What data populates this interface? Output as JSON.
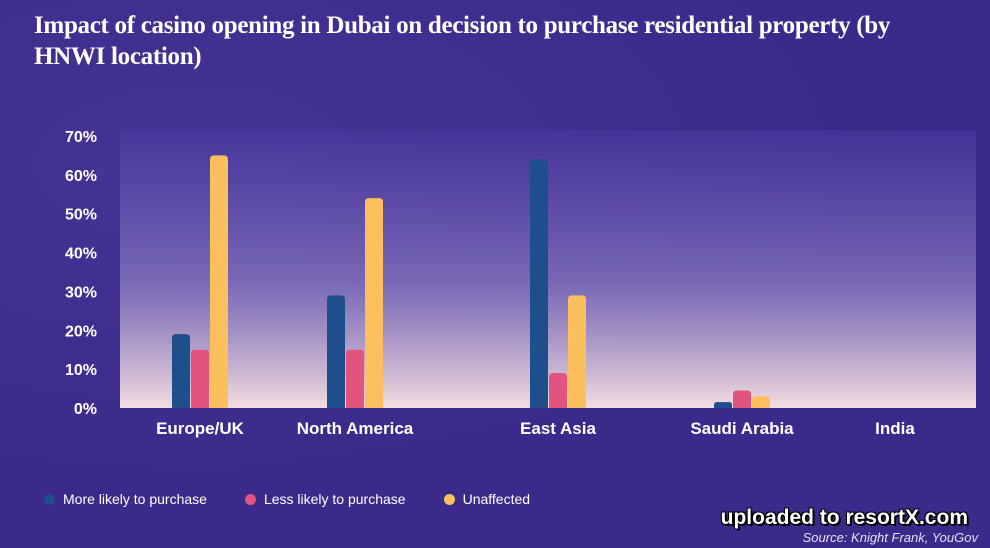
{
  "title": "Impact of casino opening in Dubai on decision to purchase residential property (by HNWI location)",
  "watermark": "uploaded to resortX.com",
  "source": "Source: Knight Frank, YouGov",
  "colors": {
    "more_likely": "#1f4e8c",
    "less_likely": "#e2537e",
    "unaffected": "#fbbf5e",
    "label": "#ffffff"
  },
  "chart_data": {
    "type": "bar",
    "categories": [
      "Europe/UK",
      "North America",
      "East Asia",
      "Saudi Arabia",
      "India"
    ],
    "series": [
      {
        "name": "More likely to purchase",
        "values": [
          19,
          29,
          64,
          1.5,
          0
        ]
      },
      {
        "name": "Less likely to purchase",
        "values": [
          15,
          15,
          9,
          4.5,
          0
        ]
      },
      {
        "name": "Unaffected",
        "values": [
          65,
          54,
          29,
          3,
          0
        ]
      }
    ],
    "yticks": [
      "0%",
      "10%",
      "20%",
      "30%",
      "40%",
      "50%",
      "60%",
      "70%"
    ],
    "ylim": [
      0,
      70
    ],
    "grid": false,
    "legend_position": "bottom-left"
  }
}
